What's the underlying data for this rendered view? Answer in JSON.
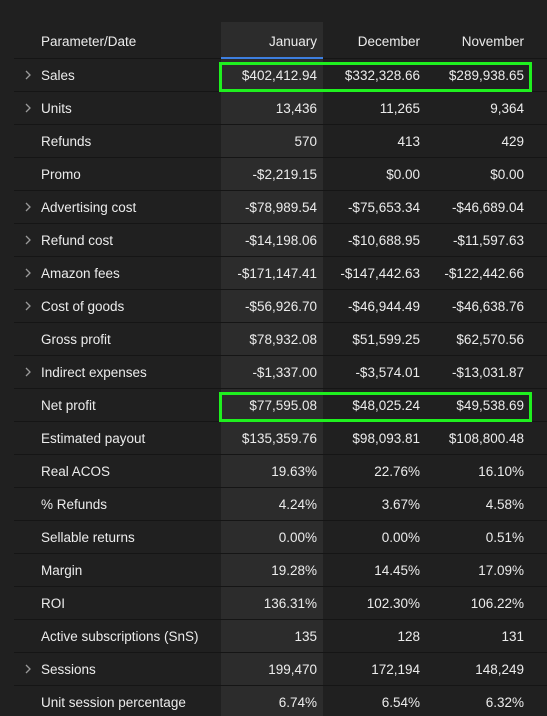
{
  "table": {
    "header": [
      "Parameter/Date",
      "January",
      "December",
      "November"
    ],
    "rows": [
      {
        "cells": [
          "Sales",
          "$402,412.94",
          "$332,328.66",
          "$289,938.65"
        ],
        "expandable": true,
        "highlighted": true
      },
      {
        "cells": [
          "Units",
          "13,436",
          "11,265",
          "9,364"
        ],
        "expandable": true,
        "highlighted": false
      },
      {
        "cells": [
          "Refunds",
          "570",
          "413",
          "429"
        ],
        "expandable": false,
        "highlighted": false
      },
      {
        "cells": [
          "Promo",
          "-$2,219.15",
          "$0.00",
          "$0.00"
        ],
        "expandable": false,
        "highlighted": false
      },
      {
        "cells": [
          "Advertising cost",
          "-$78,989.54",
          "-$75,653.34",
          "-$46,689.04"
        ],
        "expandable": true,
        "highlighted": false
      },
      {
        "cells": [
          "Refund cost",
          "-$14,198.06",
          "-$10,688.95",
          "-$11,597.63"
        ],
        "expandable": true,
        "highlighted": false
      },
      {
        "cells": [
          "Amazon fees",
          "-$171,147.41",
          "-$147,442.63",
          "-$122,442.66"
        ],
        "expandable": true,
        "highlighted": false
      },
      {
        "cells": [
          "Cost of goods",
          "-$56,926.70",
          "-$46,944.49",
          "-$46,638.76"
        ],
        "expandable": true,
        "highlighted": false
      },
      {
        "cells": [
          "Gross profit",
          "$78,932.08",
          "$51,599.25",
          "$62,570.56"
        ],
        "expandable": false,
        "highlighted": false
      },
      {
        "cells": [
          "Indirect expenses",
          "-$1,337.00",
          "-$3,574.01",
          "-$13,031.87"
        ],
        "expandable": true,
        "highlighted": false
      },
      {
        "cells": [
          "Net profit",
          "$77,595.08",
          "$48,025.24",
          "$49,538.69"
        ],
        "expandable": false,
        "highlighted": true
      },
      {
        "cells": [
          "Estimated payout",
          "$135,359.76",
          "$98,093.81",
          "$108,800.48"
        ],
        "expandable": false,
        "highlighted": false
      },
      {
        "cells": [
          "Real ACOS",
          "19.63%",
          "22.76%",
          "16.10%"
        ],
        "expandable": false,
        "highlighted": false
      },
      {
        "cells": [
          "% Refunds",
          "4.24%",
          "3.67%",
          "4.58%"
        ],
        "expandable": false,
        "highlighted": false
      },
      {
        "cells": [
          "Sellable returns",
          "0.00%",
          "0.00%",
          "0.51%"
        ],
        "expandable": false,
        "highlighted": false
      },
      {
        "cells": [
          "Margin",
          "19.28%",
          "14.45%",
          "17.09%"
        ],
        "expandable": false,
        "highlighted": false
      },
      {
        "cells": [
          "ROI",
          "136.31%",
          "102.30%",
          "106.22%"
        ],
        "expandable": false,
        "highlighted": false
      },
      {
        "cells": [
          "Active subscriptions (SnS)",
          "135",
          "128",
          "131"
        ],
        "expandable": false,
        "highlighted": false
      },
      {
        "cells": [
          "Sessions",
          "199,470",
          "172,194",
          "148,249"
        ],
        "expandable": true,
        "highlighted": false
      },
      {
        "cells": [
          "Unit session percentage",
          "6.74%",
          "6.54%",
          "6.32%"
        ],
        "expandable": false,
        "highlighted": false
      }
    ]
  }
}
